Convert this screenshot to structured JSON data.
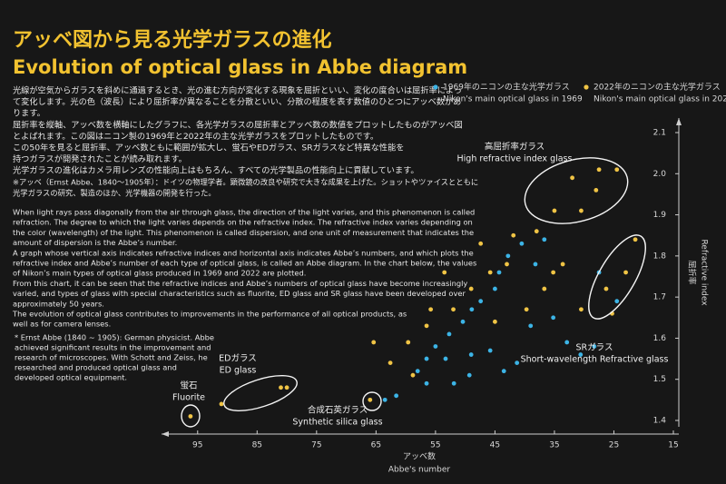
{
  "chart_data": {
    "type": "scatter",
    "title": "アッベ図から見る光学ガラスの進化",
    "subtitle": "Evolution of optical glass in Abbe diagram",
    "body_ja": [
      "光線が空気からガラスを斜めに通過するとき、光の進む方向が変化する現象を屈折といい、変化の度合いは屈折率によっ",
      "て変化します。光の色（波長）により屈折率が異なることを分散といい、分散の程度を表す数値のひとつにアッベ数があ",
      "ります。",
      "屈折率を縦軸、アッベ数を横軸にしたグラフに、各光学ガラスの屈折率とアッベ数の数値をプロットしたものがアッベ図",
      "とよばれます。この図はニコン製の1969年と2022年の主な光学ガラスをプロットしたものです。",
      "この50年を見ると屈折率、アッベ数ともに範囲が拡大し、蛍石やEDガラス、SRガラスなど特異な性能を",
      "持つガラスが開発されたことが読み取れます。",
      "光学ガラスの進化はカメラ用レンズの性能向上はもちろん、すべての光学製品の性能向上に貢献しています。"
    ],
    "footnote_ja": [
      "※アッベ（Ernst Abbe、1840～1905年）：ドイツの物理学者。顕微鏡の改良や研究で大きな成果を上げた。ショットやツァイスとともに",
      "光学ガラスの研究、製造のほか、光学機器の開発を行った。"
    ],
    "body_en": [
      "When light rays pass diagonally from the air through glass, the direction of the light varies, and this phenomenon is called",
      "refraction. The degree to which the light varies depends on the refractive index. The refractive index varies depending on",
      "the color (wavelength) of the light. This phenomenon is called dispersion, and one unit of measurement that indicates the",
      "amount of dispersion is the Abbe’s number.",
      "A graph whose vertical axis indicates refractive indices and horizontal axis indicates Abbe’s numbers, and which plots the",
      "refractive index and Abbe’s number of each type of optical glass, is called an Abbe diagram. In the chart below, the values",
      "of Nikon’s main types of optical glass produced in 1969 and 2022 are plotted.",
      "From this chart, it can be seen that the refractive indices and Abbe’s numbers of optical glass have become increasingly",
      "varied, and types of glass with special characteristics such as fluorite, ED glass and SR glass have been developed over",
      "approximately 50 years.",
      "The evolution of optical glass contributes to improvements in the performance of all optical products, as",
      "well as for camera lenses."
    ],
    "footnote_en": [
      "* Ernst Abbe (1840 ~ 1905): German physicist. Abbe",
      "achieved significant results in the improvement and",
      "research of microscopes. With Schott and Zeiss, he",
      "researched and produced optical glass and",
      "developed optical equipment."
    ],
    "x_label": "アッベ数",
    "x_label_en": "Abbe's number",
    "y_label": "屈折率",
    "y_label_en": "Refractive index",
    "xlim": [
      100,
      15
    ],
    "ylim": [
      1.4,
      2.1
    ],
    "xticks": [
      95,
      85,
      75,
      65,
      55,
      45,
      35,
      25,
      15
    ],
    "yticks": [
      1.4,
      1.5,
      1.6,
      1.7,
      1.8,
      1.9,
      {
        "value": 2,
        "label": "2.0"
      },
      2.1
    ],
    "series": [
      {
        "name": "1969年のニコンの主な光学ガラス",
        "name_en": "Nikon's main optical glass in 1969",
        "color": "#3cb4e6",
        "x": [
          61.6,
          63.5,
          58,
          56.5,
          55,
          52.7,
          50.4,
          48.9,
          47.4,
          45,
          44.3,
          42.8,
          40.5,
          38.2,
          36.7,
          35.2,
          32.9,
          30.6,
          28.3,
          41.3,
          43.5,
          49.3,
          53.3,
          45.8,
          27.5,
          24.5,
          51.9,
          39,
          49,
          56.5
        ],
        "values": [
          1.46,
          1.45,
          1.52,
          1.55,
          1.58,
          1.61,
          1.64,
          1.67,
          1.69,
          1.72,
          1.76,
          1.8,
          1.83,
          1.78,
          1.84,
          1.65,
          1.59,
          1.56,
          1.58,
          1.54,
          1.52,
          1.51,
          1.55,
          1.57,
          1.76,
          1.69,
          1.49,
          1.63,
          1.56,
          1.49
        ]
      },
      {
        "name": "2022年のニコンの主な光学ガラス",
        "name_en": "Nikon's main optical glass in 2022",
        "color": "#f0c445",
        "x": [
          96.2,
          91,
          81,
          80,
          66,
          27.5,
          24.5,
          32,
          28,
          35,
          30.5,
          38,
          21.4,
          23,
          26.3,
          25.3,
          45.8,
          43,
          49,
          52,
          56.5,
          59.6,
          65.4,
          62.6,
          36.7,
          33.6,
          39.7,
          45,
          30.5,
          53.5,
          58.8,
          47.4,
          35.2,
          55.8,
          41.9
        ],
        "values": [
          1.41,
          1.44,
          1.48,
          1.48,
          1.45,
          2.01,
          2.01,
          1.99,
          1.96,
          1.91,
          1.91,
          1.86,
          1.84,
          1.76,
          1.72,
          1.66,
          1.76,
          1.78,
          1.72,
          1.67,
          1.63,
          1.59,
          1.59,
          1.54,
          1.72,
          1.78,
          1.67,
          1.64,
          1.67,
          1.76,
          1.51,
          1.83,
          1.76,
          1.67,
          1.85
        ]
      }
    ],
    "annotations": [
      {
        "label": "高屈折率ガラス",
        "label_en": "High refractive index glass"
      },
      {
        "label": "SRガラス",
        "label_en": "Short-wavelength Refractive glass"
      },
      {
        "label": "EDガラス",
        "label_en": "ED glass"
      },
      {
        "label": "蛍石",
        "label_en": "Fluorite"
      },
      {
        "label": "合成石英ガラス",
        "label_en": "Synthetic silica glass"
      }
    ]
  }
}
